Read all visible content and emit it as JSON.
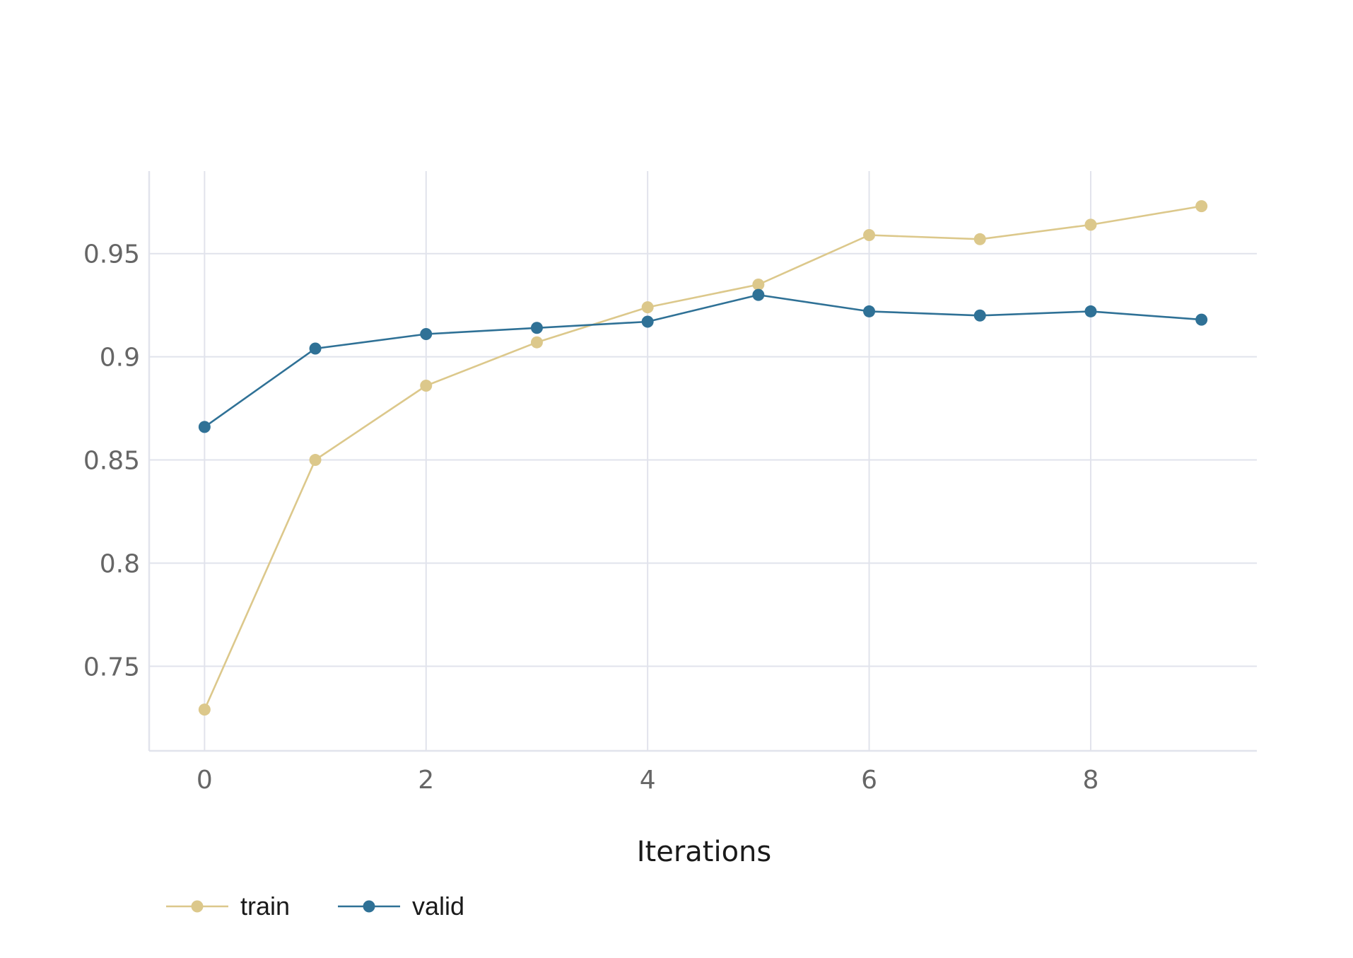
{
  "chart_data": {
    "type": "line",
    "title": "",
    "xlabel": "Iterations",
    "ylabel": "",
    "x": [
      0,
      1,
      2,
      3,
      4,
      5,
      6,
      7,
      8,
      9
    ],
    "series": [
      {
        "name": "train",
        "color": "#dcc88b",
        "values": [
          0.729,
          0.85,
          0.886,
          0.907,
          0.924,
          0.935,
          0.959,
          0.957,
          0.964,
          0.973
        ]
      },
      {
        "name": "valid",
        "color": "#2f7196",
        "values": [
          0.866,
          0.904,
          0.911,
          0.914,
          0.917,
          0.93,
          0.922,
          0.92,
          0.922,
          0.918
        ]
      }
    ],
    "xlim": [
      -0.5,
      9.5
    ],
    "ylim": [
      0.709,
      0.99
    ],
    "xticks": [
      0,
      2,
      4,
      6,
      8
    ],
    "xtick_labels": [
      "0",
      "2",
      "4",
      "6",
      "8"
    ],
    "yticks": [
      0.75,
      0.8,
      0.85,
      0.9,
      0.95
    ],
    "ytick_labels": [
      "0.75",
      "0.8",
      "0.85",
      "0.9",
      "0.95"
    ],
    "grid": true,
    "legend": "bottom-left",
    "colors": {
      "grid": "#e1e3ec",
      "axis": "#e1e3ec",
      "tick_text": "#666666"
    }
  }
}
